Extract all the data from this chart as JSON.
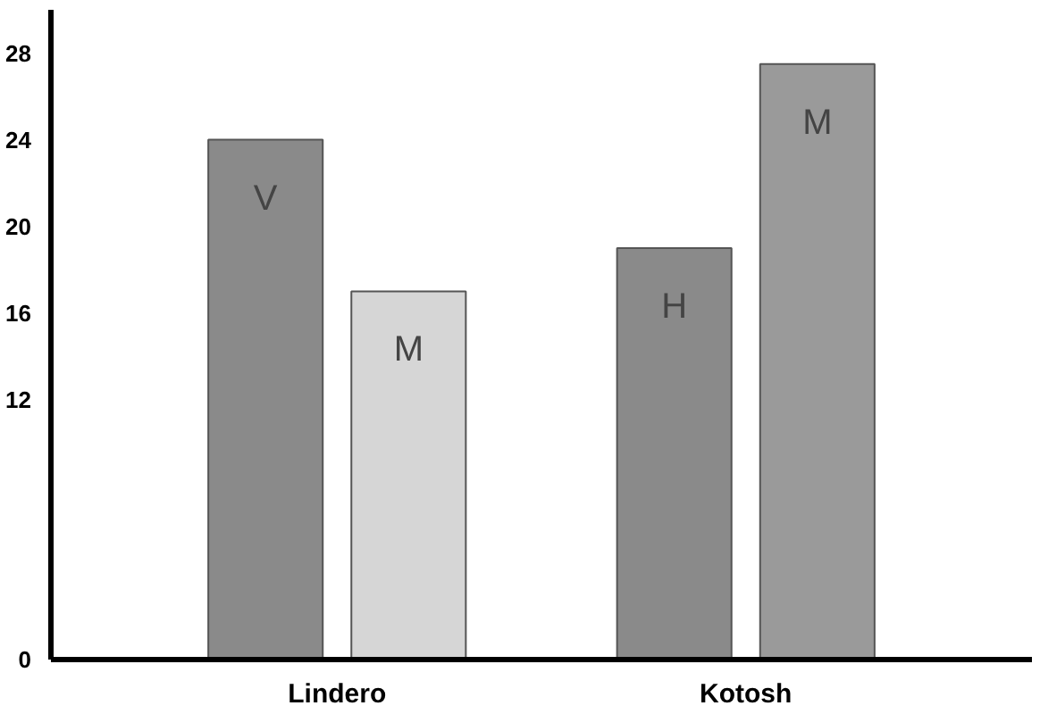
{
  "chart_data": {
    "type": "bar",
    "categories": [
      "Lindero",
      "Kotosh"
    ],
    "series": [
      {
        "colors": [
          "#8a8a8a",
          "#8a8a8a"
        ],
        "values": [
          24,
          19
        ],
        "value_labels": [
          "V",
          "H"
        ]
      },
      {
        "colors": [
          "#d6d6d6",
          "#9a9a9a"
        ],
        "values": [
          17,
          27.5
        ],
        "value_labels": [
          "M",
          "M"
        ]
      }
    ],
    "ylim": [
      0,
      30
    ],
    "yticks": [
      0,
      12,
      16,
      20,
      24,
      28
    ],
    "grid": false
  }
}
